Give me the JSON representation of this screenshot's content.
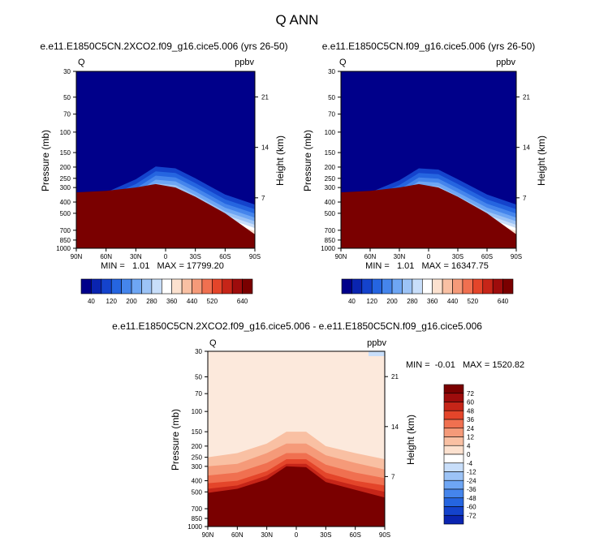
{
  "figure": {
    "title": "Q ANN"
  },
  "chart_data": [
    {
      "type": "heatmap",
      "title": "e.e11.E1850C5CN.2XCO2.f09_g16.cice5.006 (yrs 26-50)",
      "left_label": "Q",
      "right_label": "ppbv",
      "xlabel": "",
      "ylabel": "Pressure (mb)",
      "ylabel_right": "Height (km)",
      "x_ticks": [
        "90N",
        "60N",
        "30N",
        "0",
        "30S",
        "60S",
        "90S"
      ],
      "x_values": [
        90,
        60,
        30,
        0,
        -30,
        -60,
        -90
      ],
      "y_ticks": [
        "30",
        "50",
        "70",
        "100",
        "150",
        "200",
        "250",
        "300",
        "400",
        "500",
        "700",
        "850",
        "1000"
      ],
      "y_values": [
        30,
        50,
        70,
        100,
        150,
        200,
        250,
        300,
        400,
        500,
        700,
        850,
        1000
      ],
      "height_ticks": [
        "21",
        "14",
        "7"
      ],
      "height_values": [
        21,
        14,
        7
      ],
      "stats": "MIN =   1.01   MAX = 17799.20",
      "colorbar_labels": [
        "40",
        "120",
        "200",
        "280",
        "360",
        "440",
        "520",
        "640"
      ],
      "colorbar_levels": [
        40,
        80,
        120,
        160,
        200,
        240,
        280,
        320,
        360,
        400,
        440,
        480,
        520,
        560,
        600,
        640
      ],
      "colorbar_colors": [
        "#00008a",
        "#0a24b0",
        "#1443cc",
        "#2565e0",
        "#4585ec",
        "#6ea6f4",
        "#9cc3f6",
        "#c8defa",
        "#ffffff",
        "#fce1cf",
        "#f9c0a3",
        "#f59a79",
        "#f07050",
        "#e4452a",
        "#c62518",
        "#9e0c0c",
        "#7a0000"
      ],
      "field": {
        "tropopause": [
          [
            "90",
            400
          ],
          [
            "60",
            330
          ],
          [
            "30",
            255
          ],
          [
            "10",
            198
          ],
          [
            "-10",
            205
          ],
          [
            "-30",
            250
          ],
          [
            "-60",
            345
          ],
          [
            "-90",
            420
          ]
        ],
        "surface": [
          [
            "90",
            260
          ],
          [
            "-10",
            320
          ],
          [
            "-90",
            700
          ]
        ]
      }
    },
    {
      "type": "heatmap",
      "title": "e.e11.E1850C5CN.f09_g16.cice5.006 (yrs 26-50)",
      "left_label": "Q",
      "right_label": "ppbv",
      "xlabel": "",
      "ylabel": "Pressure (mb)",
      "ylabel_right": "Height (km)",
      "x_ticks": [
        "90N",
        "60N",
        "30N",
        "0",
        "30S",
        "60S",
        "90S"
      ],
      "x_values": [
        90,
        60,
        30,
        0,
        -30,
        -60,
        -90
      ],
      "y_ticks": [
        "30",
        "50",
        "70",
        "100",
        "150",
        "200",
        "250",
        "300",
        "400",
        "500",
        "700",
        "850",
        "1000"
      ],
      "y_values": [
        30,
        50,
        70,
        100,
        150,
        200,
        250,
        300,
        400,
        500,
        700,
        850,
        1000
      ],
      "height_ticks": [
        "21",
        "14",
        "7"
      ],
      "height_values": [
        21,
        14,
        7
      ],
      "stats": "MIN =   1.01   MAX = 16347.75",
      "colorbar_labels": [
        "40",
        "120",
        "200",
        "280",
        "360",
        "440",
        "520",
        "640"
      ],
      "colorbar_levels": [
        40,
        80,
        120,
        160,
        200,
        240,
        280,
        320,
        360,
        400,
        440,
        480,
        520,
        560,
        600,
        640
      ],
      "colorbar_colors": [
        "#00008a",
        "#0a24b0",
        "#1443cc",
        "#2565e0",
        "#4585ec",
        "#6ea6f4",
        "#9cc3f6",
        "#c8defa",
        "#ffffff",
        "#fce1cf",
        "#f9c0a3",
        "#f59a79",
        "#f07050",
        "#e4452a",
        "#c62518",
        "#9e0c0c",
        "#7a0000"
      ],
      "field": {
        "tropopause": [
          [
            "90",
            400
          ],
          [
            "60",
            330
          ],
          [
            "30",
            260
          ],
          [
            "10",
            205
          ],
          [
            "-10",
            210
          ],
          [
            "-30",
            255
          ],
          [
            "-60",
            345
          ],
          [
            "-90",
            420
          ]
        ],
        "surface": [
          [
            "90",
            270
          ],
          [
            "-10",
            330
          ],
          [
            "-90",
            700
          ]
        ]
      }
    },
    {
      "type": "heatmap",
      "title": "e.e11.E1850C5CN.2XCO2.f09_g16.cice5.006 - e.e11.E1850C5CN.f09_g16.cice5.006",
      "left_label": "Q",
      "right_label": "ppbv",
      "xlabel": "",
      "ylabel": "Pressure (mb)",
      "ylabel_right": "Height (km)",
      "x_ticks": [
        "90N",
        "60N",
        "30N",
        "0",
        "30S",
        "60S",
        "90S"
      ],
      "x_values": [
        90,
        60,
        30,
        0,
        -30,
        -60,
        -90
      ],
      "y_ticks": [
        "30",
        "50",
        "70",
        "100",
        "150",
        "200",
        "250",
        "300",
        "400",
        "500",
        "700",
        "850",
        "1000"
      ],
      "y_values": [
        30,
        50,
        70,
        100,
        150,
        200,
        250,
        300,
        400,
        500,
        700,
        850,
        1000
      ],
      "height_ticks": [
        "21",
        "14",
        "7"
      ],
      "height_values": [
        21,
        14,
        7
      ],
      "stats": "MIN =  -0.01   MAX = 1520.82",
      "colorbar_labels": [
        "72",
        "60",
        "48",
        "36",
        "24",
        "12",
        "4",
        "0",
        "-4",
        "-12",
        "-24",
        "-36",
        "-48",
        "-60",
        "-72"
      ],
      "colorbar_levels": [
        72,
        60,
        48,
        36,
        24,
        12,
        4,
        0,
        -4,
        -12,
        -24,
        -36,
        -48,
        -60,
        -72
      ],
      "colorbar_colors": [
        "#7a0000",
        "#9e0c0c",
        "#c62518",
        "#e4452a",
        "#f07050",
        "#f59a79",
        "#f9c0a3",
        "#fce1cf",
        "#ffffff",
        "#c8defa",
        "#9cc3f6",
        "#6ea6f4",
        "#4585ec",
        "#2565e0",
        "#1443cc",
        "#0a24b0"
      ]
    }
  ]
}
